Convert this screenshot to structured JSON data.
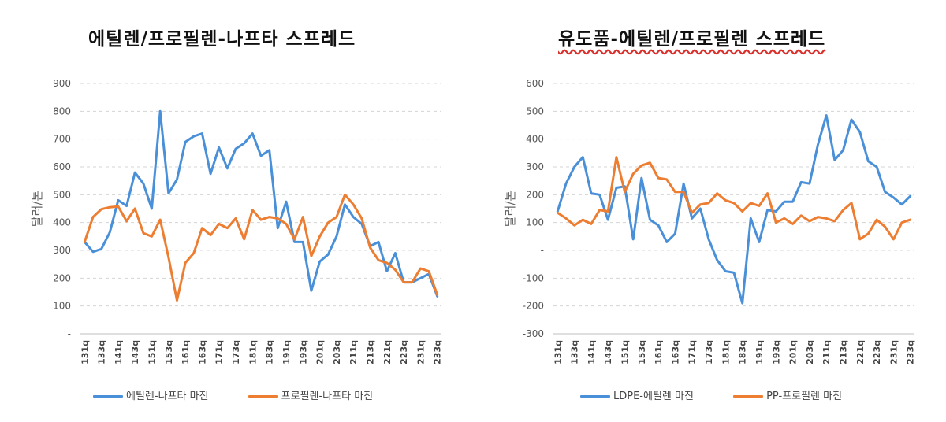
{
  "chart_data": [
    {
      "type": "line",
      "title": "에틸렌/프로필렌-나프타 스프레드",
      "ylabel": "달러/톤",
      "ylim": [
        0,
        900
      ],
      "yticks": [
        "-",
        "100",
        "200",
        "300",
        "400",
        "500",
        "600",
        "700",
        "800",
        "900"
      ],
      "grid": true,
      "legend_position": "bottom",
      "x_tick_labels": [
        "131q",
        "133q",
        "141q",
        "143q",
        "151q",
        "153q",
        "161q",
        "163q",
        "171q",
        "173q",
        "181q",
        "183q",
        "191q",
        "193q",
        "201q",
        "203q",
        "211q",
        "213q",
        "221q",
        "223q",
        "231q",
        "233q"
      ],
      "x": [
        "131q",
        "132q",
        "133q",
        "134q",
        "141q",
        "142q",
        "143q",
        "144q",
        "151q",
        "152q",
        "153q",
        "154q",
        "161q",
        "162q",
        "163q",
        "164q",
        "171q",
        "172q",
        "173q",
        "174q",
        "181q",
        "182q",
        "183q",
        "184q",
        "191q",
        "192q",
        "193q",
        "194q",
        "201q",
        "202q",
        "203q",
        "204q",
        "211q",
        "212q",
        "213q",
        "214q",
        "221q",
        "222q",
        "223q",
        "224q",
        "231q",
        "232q",
        "233q"
      ],
      "series": [
        {
          "name": "에틸렌-나프타 마진",
          "color": "#4a90d9",
          "values": [
            330,
            295,
            305,
            365,
            480,
            460,
            580,
            540,
            450,
            800,
            505,
            555,
            690,
            710,
            720,
            575,
            670,
            595,
            665,
            685,
            720,
            640,
            660,
            380,
            475,
            330,
            330,
            155,
            260,
            285,
            350,
            465,
            420,
            395,
            315,
            330,
            225,
            290,
            185,
            185,
            200,
            215,
            135
          ]
        },
        {
          "name": "프로필렌-나프타 마진",
          "color": "#ed7d31",
          "values": [
            330,
            420,
            448,
            455,
            458,
            405,
            450,
            362,
            350,
            410,
            275,
            120,
            255,
            290,
            380,
            355,
            395,
            380,
            415,
            340,
            445,
            410,
            420,
            415,
            395,
            340,
            420,
            280,
            350,
            400,
            420,
            500,
            465,
            415,
            310,
            265,
            255,
            230,
            185,
            185,
            235,
            225,
            140
          ]
        }
      ]
    },
    {
      "type": "line",
      "title": "유도품-에틸렌/프로필렌 스프레드",
      "ylabel": "달러/톤",
      "ylim": [
        -300,
        600
      ],
      "yticks": [
        "-300",
        "-200",
        "-100",
        "-",
        "100",
        "200",
        "300",
        "400",
        "500",
        "600"
      ],
      "grid": true,
      "legend_position": "bottom",
      "x_tick_labels": [
        "131q",
        "133q",
        "141q",
        "143q",
        "151q",
        "153q",
        "161q",
        "163q",
        "171q",
        "173q",
        "181q",
        "183q",
        "191q",
        "193q",
        "201q",
        "203q",
        "211q",
        "213q",
        "221q",
        "223q",
        "231q",
        "233q"
      ],
      "x": [
        "131q",
        "132q",
        "133q",
        "134q",
        "141q",
        "142q",
        "143q",
        "144q",
        "151q",
        "152q",
        "153q",
        "154q",
        "161q",
        "162q",
        "163q",
        "164q",
        "171q",
        "172q",
        "173q",
        "174q",
        "181q",
        "182q",
        "183q",
        "184q",
        "191q",
        "192q",
        "193q",
        "194q",
        "201q",
        "202q",
        "203q",
        "204q",
        "211q",
        "212q",
        "213q",
        "214q",
        "221q",
        "222q",
        "223q",
        "224q",
        "231q",
        "232q",
        "233q"
      ],
      "series": [
        {
          "name": "LDPE-에틸렌 마진",
          "color": "#4a90d9",
          "values": [
            140,
            240,
            300,
            335,
            205,
            200,
            110,
            225,
            230,
            40,
            260,
            110,
            90,
            30,
            60,
            240,
            115,
            150,
            40,
            -35,
            -75,
            -80,
            -190,
            115,
            30,
            145,
            140,
            175,
            175,
            245,
            240,
            380,
            485,
            325,
            360,
            470,
            425,
            320,
            300,
            210,
            190,
            165,
            195
          ]
        },
        {
          "name": "PP-프로필렌 마진",
          "color": "#ed7d31",
          "values": [
            135,
            115,
            90,
            110,
            95,
            145,
            140,
            335,
            210,
            275,
            305,
            315,
            260,
            255,
            210,
            210,
            135,
            165,
            170,
            205,
            180,
            170,
            140,
            170,
            160,
            205,
            100,
            115,
            95,
            125,
            105,
            120,
            115,
            105,
            145,
            170,
            40,
            60,
            110,
            85,
            40,
            100,
            110
          ]
        }
      ]
    }
  ]
}
